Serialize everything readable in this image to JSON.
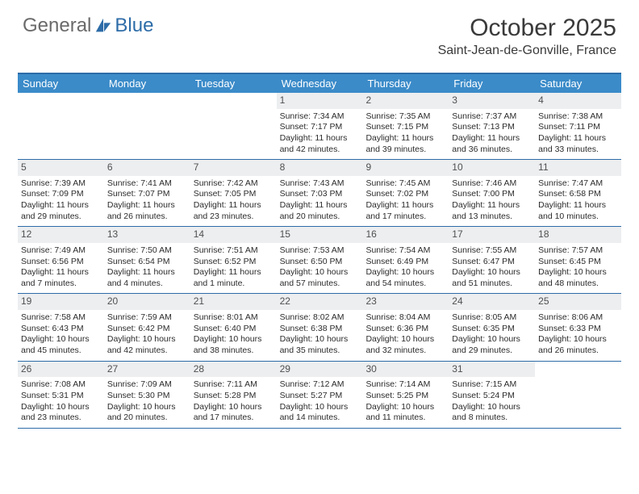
{
  "logo": {
    "text1": "General",
    "text2": "Blue"
  },
  "title": "October 2025",
  "location": "Saint-Jean-de-Gonville, France",
  "colors": {
    "header_bar": "#3b8bc9",
    "rule": "#2d6ca8",
    "daynum_bg": "#eceef0",
    "logo_gray": "#6a6a6a",
    "logo_blue": "#2d6ca8"
  },
  "weekdays": [
    "Sunday",
    "Monday",
    "Tuesday",
    "Wednesday",
    "Thursday",
    "Friday",
    "Saturday"
  ],
  "weeks": [
    [
      {
        "blank": true
      },
      {
        "blank": true
      },
      {
        "blank": true
      },
      {
        "n": "1",
        "sr": "Sunrise: 7:34 AM",
        "ss": "Sunset: 7:17 PM",
        "dl": "Daylight: 11 hours and 42 minutes."
      },
      {
        "n": "2",
        "sr": "Sunrise: 7:35 AM",
        "ss": "Sunset: 7:15 PM",
        "dl": "Daylight: 11 hours and 39 minutes."
      },
      {
        "n": "3",
        "sr": "Sunrise: 7:37 AM",
        "ss": "Sunset: 7:13 PM",
        "dl": "Daylight: 11 hours and 36 minutes."
      },
      {
        "n": "4",
        "sr": "Sunrise: 7:38 AM",
        "ss": "Sunset: 7:11 PM",
        "dl": "Daylight: 11 hours and 33 minutes."
      }
    ],
    [
      {
        "n": "5",
        "sr": "Sunrise: 7:39 AM",
        "ss": "Sunset: 7:09 PM",
        "dl": "Daylight: 11 hours and 29 minutes."
      },
      {
        "n": "6",
        "sr": "Sunrise: 7:41 AM",
        "ss": "Sunset: 7:07 PM",
        "dl": "Daylight: 11 hours and 26 minutes."
      },
      {
        "n": "7",
        "sr": "Sunrise: 7:42 AM",
        "ss": "Sunset: 7:05 PM",
        "dl": "Daylight: 11 hours and 23 minutes."
      },
      {
        "n": "8",
        "sr": "Sunrise: 7:43 AM",
        "ss": "Sunset: 7:03 PM",
        "dl": "Daylight: 11 hours and 20 minutes."
      },
      {
        "n": "9",
        "sr": "Sunrise: 7:45 AM",
        "ss": "Sunset: 7:02 PM",
        "dl": "Daylight: 11 hours and 17 minutes."
      },
      {
        "n": "10",
        "sr": "Sunrise: 7:46 AM",
        "ss": "Sunset: 7:00 PM",
        "dl": "Daylight: 11 hours and 13 minutes."
      },
      {
        "n": "11",
        "sr": "Sunrise: 7:47 AM",
        "ss": "Sunset: 6:58 PM",
        "dl": "Daylight: 11 hours and 10 minutes."
      }
    ],
    [
      {
        "n": "12",
        "sr": "Sunrise: 7:49 AM",
        "ss": "Sunset: 6:56 PM",
        "dl": "Daylight: 11 hours and 7 minutes."
      },
      {
        "n": "13",
        "sr": "Sunrise: 7:50 AM",
        "ss": "Sunset: 6:54 PM",
        "dl": "Daylight: 11 hours and 4 minutes."
      },
      {
        "n": "14",
        "sr": "Sunrise: 7:51 AM",
        "ss": "Sunset: 6:52 PM",
        "dl": "Daylight: 11 hours and 1 minute."
      },
      {
        "n": "15",
        "sr": "Sunrise: 7:53 AM",
        "ss": "Sunset: 6:50 PM",
        "dl": "Daylight: 10 hours and 57 minutes."
      },
      {
        "n": "16",
        "sr": "Sunrise: 7:54 AM",
        "ss": "Sunset: 6:49 PM",
        "dl": "Daylight: 10 hours and 54 minutes."
      },
      {
        "n": "17",
        "sr": "Sunrise: 7:55 AM",
        "ss": "Sunset: 6:47 PM",
        "dl": "Daylight: 10 hours and 51 minutes."
      },
      {
        "n": "18",
        "sr": "Sunrise: 7:57 AM",
        "ss": "Sunset: 6:45 PM",
        "dl": "Daylight: 10 hours and 48 minutes."
      }
    ],
    [
      {
        "n": "19",
        "sr": "Sunrise: 7:58 AM",
        "ss": "Sunset: 6:43 PM",
        "dl": "Daylight: 10 hours and 45 minutes."
      },
      {
        "n": "20",
        "sr": "Sunrise: 7:59 AM",
        "ss": "Sunset: 6:42 PM",
        "dl": "Daylight: 10 hours and 42 minutes."
      },
      {
        "n": "21",
        "sr": "Sunrise: 8:01 AM",
        "ss": "Sunset: 6:40 PM",
        "dl": "Daylight: 10 hours and 38 minutes."
      },
      {
        "n": "22",
        "sr": "Sunrise: 8:02 AM",
        "ss": "Sunset: 6:38 PM",
        "dl": "Daylight: 10 hours and 35 minutes."
      },
      {
        "n": "23",
        "sr": "Sunrise: 8:04 AM",
        "ss": "Sunset: 6:36 PM",
        "dl": "Daylight: 10 hours and 32 minutes."
      },
      {
        "n": "24",
        "sr": "Sunrise: 8:05 AM",
        "ss": "Sunset: 6:35 PM",
        "dl": "Daylight: 10 hours and 29 minutes."
      },
      {
        "n": "25",
        "sr": "Sunrise: 8:06 AM",
        "ss": "Sunset: 6:33 PM",
        "dl": "Daylight: 10 hours and 26 minutes."
      }
    ],
    [
      {
        "n": "26",
        "sr": "Sunrise: 7:08 AM",
        "ss": "Sunset: 5:31 PM",
        "dl": "Daylight: 10 hours and 23 minutes."
      },
      {
        "n": "27",
        "sr": "Sunrise: 7:09 AM",
        "ss": "Sunset: 5:30 PM",
        "dl": "Daylight: 10 hours and 20 minutes."
      },
      {
        "n": "28",
        "sr": "Sunrise: 7:11 AM",
        "ss": "Sunset: 5:28 PM",
        "dl": "Daylight: 10 hours and 17 minutes."
      },
      {
        "n": "29",
        "sr": "Sunrise: 7:12 AM",
        "ss": "Sunset: 5:27 PM",
        "dl": "Daylight: 10 hours and 14 minutes."
      },
      {
        "n": "30",
        "sr": "Sunrise: 7:14 AM",
        "ss": "Sunset: 5:25 PM",
        "dl": "Daylight: 10 hours and 11 minutes."
      },
      {
        "n": "31",
        "sr": "Sunrise: 7:15 AM",
        "ss": "Sunset: 5:24 PM",
        "dl": "Daylight: 10 hours and 8 minutes."
      },
      {
        "blank": true
      }
    ]
  ]
}
